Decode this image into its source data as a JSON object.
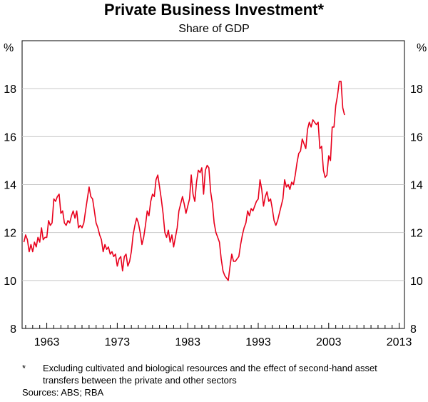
{
  "chart_data": {
    "type": "line",
    "title": "Private Business Investment*",
    "subtitle": "Share of GDP",
    "y_unit_left": "%",
    "y_unit_right": "%",
    "ylim": [
      8,
      20
    ],
    "yticks": [
      8,
      10,
      12,
      14,
      16,
      18
    ],
    "xlim": [
      1959.5,
      2013.75
    ],
    "xticks": [
      1963,
      1973,
      1983,
      1993,
      2003,
      2013
    ],
    "grid": true,
    "line_color": "#e8001c",
    "series": [
      {
        "values": [
          [
            1959.75,
            11.6
          ],
          [
            1960.0,
            11.9
          ],
          [
            1960.25,
            11.7
          ],
          [
            1960.5,
            11.2
          ],
          [
            1960.75,
            11.5
          ],
          [
            1961.0,
            11.2
          ],
          [
            1961.25,
            11.6
          ],
          [
            1961.5,
            11.4
          ],
          [
            1961.75,
            11.8
          ],
          [
            1962.0,
            11.6
          ],
          [
            1962.25,
            12.2
          ],
          [
            1962.5,
            11.7
          ],
          [
            1962.75,
            11.8
          ],
          [
            1963.0,
            11.8
          ],
          [
            1963.25,
            12.5
          ],
          [
            1963.5,
            12.3
          ],
          [
            1963.75,
            12.4
          ],
          [
            1964.0,
            13.4
          ],
          [
            1964.25,
            13.3
          ],
          [
            1964.5,
            13.5
          ],
          [
            1964.75,
            13.6
          ],
          [
            1965.0,
            12.8
          ],
          [
            1965.25,
            12.9
          ],
          [
            1965.5,
            12.4
          ],
          [
            1965.75,
            12.3
          ],
          [
            1966.0,
            12.5
          ],
          [
            1966.25,
            12.4
          ],
          [
            1966.5,
            12.7
          ],
          [
            1966.75,
            12.9
          ],
          [
            1967.0,
            12.6
          ],
          [
            1967.25,
            12.9
          ],
          [
            1967.5,
            12.2
          ],
          [
            1967.75,
            12.3
          ],
          [
            1968.0,
            12.2
          ],
          [
            1968.25,
            12.4
          ],
          [
            1968.5,
            12.9
          ],
          [
            1968.75,
            13.4
          ],
          [
            1969.0,
            13.9
          ],
          [
            1969.25,
            13.5
          ],
          [
            1969.5,
            13.4
          ],
          [
            1969.75,
            12.9
          ],
          [
            1970.0,
            12.4
          ],
          [
            1970.25,
            12.2
          ],
          [
            1970.5,
            11.9
          ],
          [
            1970.75,
            11.7
          ],
          [
            1971.0,
            11.2
          ],
          [
            1971.25,
            11.5
          ],
          [
            1971.5,
            11.3
          ],
          [
            1971.75,
            11.4
          ],
          [
            1972.0,
            11.1
          ],
          [
            1972.25,
            11.2
          ],
          [
            1972.5,
            11.0
          ],
          [
            1972.75,
            11.1
          ],
          [
            1973.0,
            10.6
          ],
          [
            1973.25,
            10.9
          ],
          [
            1973.5,
            11.0
          ],
          [
            1973.75,
            10.4
          ],
          [
            1974.0,
            11.0
          ],
          [
            1974.25,
            11.1
          ],
          [
            1974.5,
            10.6
          ],
          [
            1974.75,
            10.8
          ],
          [
            1975.0,
            11.2
          ],
          [
            1975.25,
            11.9
          ],
          [
            1975.5,
            12.3
          ],
          [
            1975.75,
            12.6
          ],
          [
            1976.0,
            12.4
          ],
          [
            1976.25,
            12.0
          ],
          [
            1976.5,
            11.5
          ],
          [
            1976.75,
            11.8
          ],
          [
            1977.0,
            12.3
          ],
          [
            1977.25,
            12.9
          ],
          [
            1977.5,
            12.7
          ],
          [
            1977.75,
            13.3
          ],
          [
            1978.0,
            13.6
          ],
          [
            1978.25,
            13.5
          ],
          [
            1978.5,
            14.2
          ],
          [
            1978.75,
            14.4
          ],
          [
            1979.0,
            13.9
          ],
          [
            1979.25,
            13.4
          ],
          [
            1979.5,
            12.8
          ],
          [
            1979.75,
            12.0
          ],
          [
            1980.0,
            11.8
          ],
          [
            1980.25,
            12.1
          ],
          [
            1980.5,
            11.6
          ],
          [
            1980.75,
            11.9
          ],
          [
            1981.0,
            11.4
          ],
          [
            1981.25,
            11.8
          ],
          [
            1981.5,
            12.2
          ],
          [
            1981.75,
            12.9
          ],
          [
            1982.0,
            13.2
          ],
          [
            1982.25,
            13.5
          ],
          [
            1982.5,
            13.2
          ],
          [
            1982.75,
            12.8
          ],
          [
            1983.0,
            13.1
          ],
          [
            1983.25,
            13.4
          ],
          [
            1983.5,
            14.4
          ],
          [
            1983.75,
            13.6
          ],
          [
            1984.0,
            13.3
          ],
          [
            1984.25,
            14.1
          ],
          [
            1984.5,
            14.6
          ],
          [
            1984.75,
            14.5
          ],
          [
            1985.0,
            14.7
          ],
          [
            1985.25,
            13.6
          ],
          [
            1985.5,
            14.6
          ],
          [
            1985.75,
            14.8
          ],
          [
            1986.0,
            14.7
          ],
          [
            1986.25,
            13.7
          ],
          [
            1986.5,
            13.2
          ],
          [
            1986.75,
            12.4
          ],
          [
            1987.0,
            12.0
          ],
          [
            1987.25,
            11.8
          ],
          [
            1987.5,
            11.6
          ],
          [
            1987.75,
            10.9
          ],
          [
            1988.0,
            10.4
          ],
          [
            1988.25,
            10.2
          ],
          [
            1988.5,
            10.1
          ],
          [
            1988.75,
            10.0
          ],
          [
            1989.0,
            10.6
          ],
          [
            1989.25,
            11.1
          ],
          [
            1989.5,
            10.8
          ],
          [
            1989.75,
            10.8
          ],
          [
            1990.0,
            10.9
          ],
          [
            1990.25,
            11.0
          ],
          [
            1990.5,
            11.5
          ],
          [
            1990.75,
            11.9
          ],
          [
            1991.0,
            12.2
          ],
          [
            1991.25,
            12.4
          ],
          [
            1991.5,
            12.9
          ],
          [
            1991.75,
            12.7
          ],
          [
            1992.0,
            13.0
          ],
          [
            1992.25,
            12.9
          ],
          [
            1992.5,
            13.1
          ],
          [
            1992.75,
            13.3
          ],
          [
            1993.0,
            13.4
          ],
          [
            1993.25,
            14.2
          ],
          [
            1993.5,
            13.8
          ],
          [
            1993.75,
            13.1
          ],
          [
            1994.0,
            13.5
          ],
          [
            1994.25,
            13.7
          ],
          [
            1994.5,
            13.3
          ],
          [
            1994.75,
            13.4
          ],
          [
            1995.0,
            13.0
          ],
          [
            1995.25,
            12.5
          ],
          [
            1995.5,
            12.3
          ],
          [
            1995.75,
            12.5
          ],
          [
            1996.0,
            12.8
          ],
          [
            1996.25,
            13.1
          ],
          [
            1996.5,
            13.4
          ],
          [
            1996.75,
            14.2
          ],
          [
            1997.0,
            13.9
          ],
          [
            1997.25,
            14.0
          ],
          [
            1997.5,
            13.8
          ],
          [
            1997.75,
            14.1
          ],
          [
            1998.0,
            14.0
          ],
          [
            1998.25,
            14.4
          ],
          [
            1998.5,
            14.9
          ],
          [
            1998.75,
            15.3
          ],
          [
            1999.0,
            15.4
          ],
          [
            1999.25,
            15.9
          ],
          [
            1999.5,
            15.7
          ],
          [
            1999.75,
            15.5
          ],
          [
            2000.0,
            16.3
          ],
          [
            2000.25,
            16.6
          ],
          [
            2000.5,
            16.4
          ],
          [
            2000.75,
            16.7
          ],
          [
            2001.0,
            16.6
          ],
          [
            2001.25,
            16.5
          ],
          [
            2001.5,
            16.6
          ],
          [
            2001.75,
            15.5
          ],
          [
            2002.0,
            15.6
          ],
          [
            2002.25,
            14.6
          ],
          [
            2002.5,
            14.3
          ],
          [
            2002.75,
            14.4
          ],
          [
            2003.0,
            15.2
          ],
          [
            2003.25,
            15.0
          ],
          [
            2003.5,
            16.4
          ],
          [
            2003.75,
            16.4
          ],
          [
            2004.0,
            17.3
          ],
          [
            2004.25,
            17.7
          ],
          [
            2004.5,
            18.3
          ],
          [
            2004.75,
            18.3
          ],
          [
            2005.0,
            17.2
          ],
          [
            2005.25,
            16.9
          ]
        ]
      }
    ]
  },
  "footnote": {
    "marker": "*",
    "text": "Excluding cultivated and biological resources and the effect of second-hand asset transfers between the private and other sectors"
  },
  "sources": "Sources: ABS; RBA"
}
